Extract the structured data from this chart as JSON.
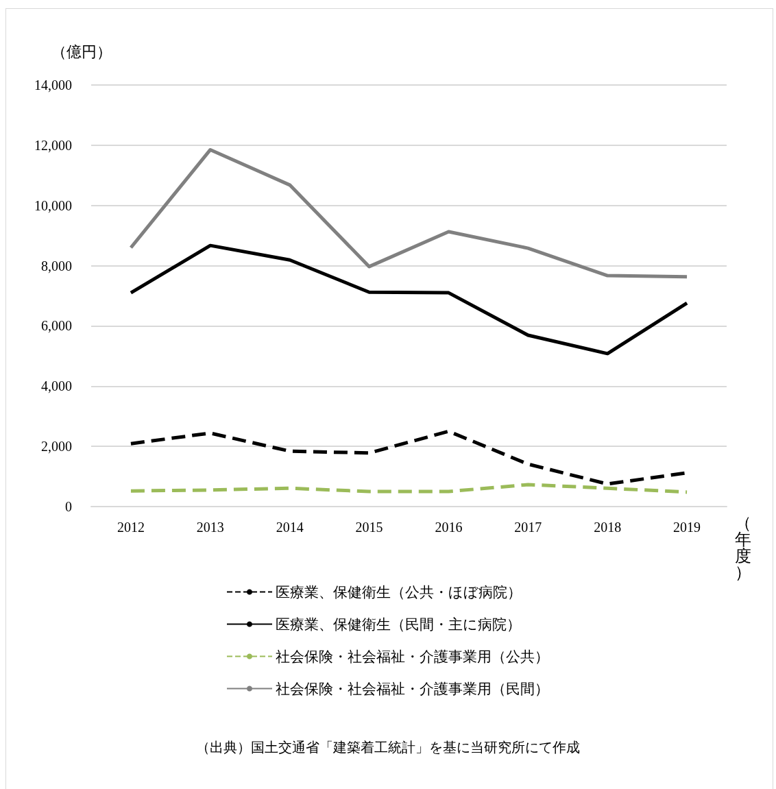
{
  "chart_data": {
    "type": "line",
    "ylabel": "（億円）",
    "xlabel": "（年度）",
    "categories": [
      "2012",
      "2013",
      "2014",
      "2015",
      "2016",
      "2017",
      "2018",
      "2019"
    ],
    "ylim": [
      0,
      14000
    ],
    "yticks": [
      {
        "value": 0,
        "label": "0"
      },
      {
        "value": 2000,
        "label": "2,000"
      },
      {
        "value": 4000,
        "label": "4,000"
      },
      {
        "value": 6000,
        "label": "6,000"
      },
      {
        "value": 8000,
        "label": "8,000"
      },
      {
        "value": 10000,
        "label": "10,000"
      },
      {
        "value": 12000,
        "label": "12,000"
      },
      {
        "value": 14000,
        "label": "14,000"
      }
    ],
    "grid": "y",
    "legend": "bottom",
    "marker": "none",
    "series": [
      {
        "name": "医療業、保健衛生（公共・ほぼ病院）",
        "color": "#000000",
        "line_style": "dashed",
        "values": [
          2090,
          2440,
          1840,
          1780,
          2500,
          1410,
          750,
          1120
        ]
      },
      {
        "name": "医療業、保健衛生（民間・主に病院）",
        "color": "#000000",
        "line_style": "solid",
        "values": [
          7100,
          8670,
          8190,
          7120,
          7100,
          5690,
          5080,
          6760
        ]
      },
      {
        "name": "社会保険・社会福祉・介護事業用（公共）",
        "color": "#9bbb59",
        "line_style": "dashed",
        "values": [
          520,
          550,
          610,
          500,
          500,
          730,
          610,
          480
        ]
      },
      {
        "name": "社会保険・社会福祉・介護事業用（民間）",
        "color": "#808080",
        "line_style": "solid",
        "values": [
          8600,
          11850,
          10680,
          7970,
          9130,
          8580,
          7670,
          7630
        ]
      }
    ],
    "annotations": [
      "（出典）国土交通省「建築着工統計」を基に当研究所にて作成"
    ]
  }
}
